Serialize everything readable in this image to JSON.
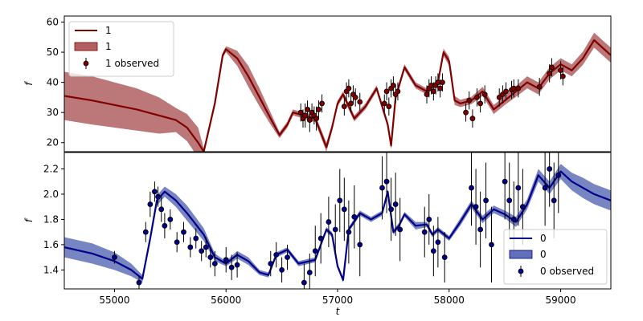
{
  "chart_data": [
    {
      "type": "line",
      "xlabel": "",
      "ylabel": "f",
      "xlim": [
        54550,
        59450
      ],
      "ylim": [
        17,
        62
      ],
      "yticks": [
        20,
        30,
        40,
        50,
        60
      ],
      "color": "#800000",
      "band_color": "#b06060",
      "legend_position": "upper left",
      "legend": {
        "line": "1",
        "band": "1",
        "observed": "1 observed"
      },
      "series": [
        {
          "kind": "model",
          "x": [
            54550,
            54800,
            55000,
            55200,
            55400,
            55550,
            55650,
            55750,
            55800,
            55900,
            55970,
            56000,
            56100,
            56200,
            56300,
            56400,
            56480,
            56550,
            56600,
            56700,
            56800,
            56900,
            56950,
            57000,
            57050,
            57150,
            57250,
            57350,
            57450,
            57480,
            57520,
            57600,
            57700,
            57800,
            57900,
            57950,
            58000,
            58050,
            58100,
            58200,
            58300,
            58400,
            58500,
            58600,
            58700,
            58800,
            58900,
            59000,
            59100,
            59200,
            59300,
            59450
          ],
          "y": [
            35.5,
            34.0,
            32.5,
            31.0,
            29.0,
            27.5,
            25.0,
            20.0,
            17.0,
            33.0,
            49.0,
            51.0,
            48.0,
            42.0,
            35.0,
            28.0,
            22.5,
            26.0,
            30.0,
            29.0,
            28.0,
            18.5,
            25.0,
            33.0,
            36.0,
            28.0,
            32.0,
            38.0,
            26.0,
            19.0,
            35.0,
            45.0,
            39.0,
            37.0,
            40.0,
            50.0,
            47.0,
            34.0,
            33.0,
            34.0,
            37.0,
            31.0,
            34.0,
            37.0,
            40.0,
            38.0,
            43.0,
            46.0,
            44.0,
            48.0,
            54.0,
            49.0
          ],
          "band": [
            8.0,
            8.0,
            7.5,
            7.0,
            6.0,
            4.0,
            4.5,
            5.0,
            1.2,
            1.0,
            0.8,
            1.0,
            2.5,
            3.5,
            3.0,
            2.0,
            1.0,
            1.0,
            1.0,
            1.0,
            1.2,
            1.5,
            1.2,
            1.0,
            1.0,
            1.0,
            1.0,
            1.0,
            1.0,
            1.2,
            1.2,
            1.0,
            1.0,
            1.0,
            1.0,
            1.2,
            1.5,
            1.5,
            1.2,
            1.2,
            1.5,
            1.5,
            1.5,
            1.8,
            2.0,
            2.0,
            2.0,
            2.0,
            2.0,
            2.2,
            2.5,
            2.5
          ]
        },
        {
          "kind": "observed",
          "x": [
            56670,
            56690,
            56710,
            56730,
            56750,
            56770,
            56790,
            56810,
            56830,
            56860,
            57060,
            57080,
            57100,
            57120,
            57140,
            57160,
            57200,
            57420,
            57440,
            57460,
            57480,
            57500,
            57520,
            57540,
            57800,
            57820,
            57840,
            57860,
            57880,
            57900,
            57920,
            57940,
            58150,
            58180,
            58210,
            58250,
            58280,
            58320,
            58450,
            58480,
            58510,
            58560,
            58580,
            58620,
            58810,
            58900,
            58920,
            59000,
            59020
          ],
          "y": [
            30.0,
            28.0,
            29.0,
            31.0,
            27.5,
            30.0,
            29.0,
            28.0,
            31.0,
            33.0,
            32.0,
            37.0,
            38.0,
            33.0,
            36.0,
            35.0,
            33.5,
            33.0,
            37.0,
            32.0,
            38.0,
            39.0,
            36.0,
            37.0,
            36.0,
            38.0,
            39.0,
            37.0,
            39.0,
            40.0,
            38.0,
            40.0,
            30.0,
            34.0,
            28.0,
            35.0,
            33.0,
            36.0,
            35.0,
            36.0,
            37.0,
            37.5,
            38.0,
            38.0,
            38.5,
            43.0,
            45.0,
            44.0,
            42.0
          ],
          "err": [
            3,
            3,
            4,
            3,
            4,
            3,
            3,
            4,
            3,
            3,
            3,
            3,
            3,
            3,
            3,
            3,
            3,
            3,
            3,
            3,
            3,
            3,
            3,
            3,
            3,
            3,
            3,
            3,
            3,
            3,
            3,
            3,
            3,
            3,
            3,
            3,
            3,
            3,
            3,
            3,
            3,
            3,
            3,
            3,
            3,
            3,
            3,
            3,
            3
          ]
        }
      ]
    },
    {
      "type": "line",
      "xlabel": "t",
      "ylabel": "f",
      "xlim": [
        54550,
        59450
      ],
      "ylim": [
        1.25,
        2.33
      ],
      "yticks": [
        1.4,
        1.6,
        1.8,
        2.0,
        2.2
      ],
      "xticks": [
        55000,
        56000,
        57000,
        58000,
        59000
      ],
      "color": "#00008b",
      "band_color": "#6070b8",
      "legend_position": "lower right",
      "legend": {
        "line": "0",
        "band": "0",
        "observed": "0 observed"
      },
      "series": [
        {
          "kind": "model",
          "x": [
            54550,
            54800,
            55000,
            55150,
            55250,
            55320,
            55380,
            55450,
            55550,
            55650,
            55800,
            55900,
            56000,
            56100,
            56200,
            56300,
            56380,
            56450,
            56550,
            56650,
            56800,
            56900,
            56950,
            57000,
            57050,
            57100,
            57200,
            57300,
            57400,
            57450,
            57500,
            57550,
            57600,
            57700,
            57800,
            57850,
            57900,
            58000,
            58100,
            58200,
            58300,
            58400,
            58500,
            58600,
            58700,
            58800,
            58900,
            59000,
            59100,
            59200,
            59300,
            59450
          ],
          "y": [
            1.58,
            1.53,
            1.47,
            1.4,
            1.33,
            1.65,
            1.95,
            2.02,
            1.95,
            1.85,
            1.68,
            1.5,
            1.45,
            1.52,
            1.47,
            1.38,
            1.36,
            1.52,
            1.56,
            1.45,
            1.48,
            1.72,
            1.68,
            1.43,
            1.32,
            1.72,
            1.85,
            1.8,
            1.85,
            2.02,
            1.7,
            1.75,
            1.84,
            1.75,
            1.76,
            1.68,
            1.72,
            1.65,
            1.78,
            1.92,
            1.8,
            1.88,
            1.84,
            1.78,
            1.92,
            2.15,
            2.05,
            2.18,
            2.1,
            2.05,
            2.0,
            1.95
          ],
          "band": [
            0.08,
            0.08,
            0.07,
            0.05,
            0.03,
            0.03,
            0.04,
            0.04,
            0.05,
            0.06,
            0.05,
            0.03,
            0.02,
            0.03,
            0.03,
            0.02,
            0.02,
            0.02,
            0.02,
            0.02,
            0.02,
            0.02,
            0.02,
            0.02,
            0.02,
            0.02,
            0.02,
            0.02,
            0.02,
            0.02,
            0.02,
            0.02,
            0.02,
            0.03,
            0.02,
            0.02,
            0.02,
            0.02,
            0.03,
            0.03,
            0.03,
            0.03,
            0.03,
            0.04,
            0.04,
            0.05,
            0.05,
            0.06,
            0.07,
            0.08,
            0.08,
            0.08
          ]
        },
        {
          "kind": "observed",
          "x": [
            55000,
            55220,
            55280,
            55320,
            55360,
            55390,
            55420,
            55450,
            55500,
            55560,
            55620,
            55680,
            55730,
            55780,
            55820,
            55860,
            55900,
            56000,
            56050,
            56100,
            56400,
            56450,
            56500,
            56550,
            56700,
            56750,
            56800,
            56850,
            56920,
            56980,
            57020,
            57060,
            57100,
            57150,
            57200,
            57400,
            57440,
            57480,
            57520,
            57560,
            57780,
            57820,
            57860,
            57900,
            57960,
            58200,
            58240,
            58280,
            58330,
            58380,
            58500,
            58540,
            58580,
            58620,
            58660,
            58860,
            58900,
            58940,
            58980
          ],
          "y": [
            1.5,
            1.3,
            1.7,
            1.92,
            2.02,
            1.98,
            1.88,
            1.75,
            1.8,
            1.62,
            1.7,
            1.58,
            1.65,
            1.55,
            1.58,
            1.5,
            1.45,
            1.48,
            1.42,
            1.44,
            1.45,
            1.52,
            1.4,
            1.5,
            1.3,
            1.38,
            1.55,
            1.65,
            1.78,
            1.72,
            1.95,
            1.88,
            1.7,
            1.82,
            1.6,
            2.05,
            2.1,
            1.88,
            1.92,
            1.72,
            1.7,
            1.8,
            1.55,
            1.62,
            1.5,
            2.05,
            1.9,
            1.72,
            1.95,
            1.6,
            2.1,
            1.95,
            1.8,
            2.05,
            1.9,
            2.05,
            2.2,
            1.95,
            2.15
          ],
          "err": [
            0.05,
            0.05,
            0.08,
            0.1,
            0.08,
            0.08,
            0.1,
            0.1,
            0.08,
            0.08,
            0.08,
            0.08,
            0.08,
            0.08,
            0.08,
            0.08,
            0.1,
            0.1,
            0.1,
            0.1,
            0.1,
            0.1,
            0.1,
            0.1,
            0.15,
            0.15,
            0.2,
            0.2,
            0.2,
            0.2,
            0.25,
            0.25,
            0.25,
            0.25,
            0.25,
            0.25,
            0.25,
            0.25,
            0.25,
            0.25,
            0.2,
            0.2,
            0.2,
            0.2,
            0.2,
            0.3,
            0.3,
            0.3,
            0.3,
            0.3,
            0.3,
            0.3,
            0.3,
            0.3,
            0.3,
            0.3,
            0.3,
            0.3,
            0.3
          ]
        }
      ]
    }
  ]
}
